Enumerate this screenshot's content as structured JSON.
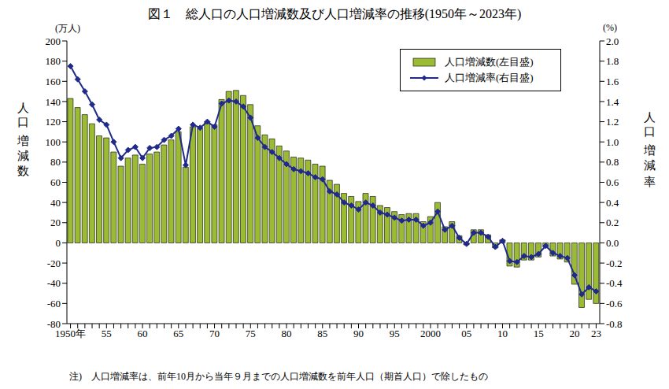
{
  "chart_data": {
    "type": "bar",
    "title": "図１　総人口の人口増減数及び人口増減率の推移(1950年～2023年)",
    "ylabel": "人口増減数",
    "ylabel_unit": "(万人)",
    "y2label": "人口増減率",
    "y2label_unit": "(%)",
    "note": "注)　人口増減率は、前年10月から当年９月までの人口増減数を前年人口（期首人口）で除したもの",
    "categories": [
      "1950年",
      null,
      null,
      null,
      null,
      "55",
      null,
      null,
      null,
      null,
      "60",
      null,
      null,
      null,
      null,
      "65",
      null,
      null,
      null,
      null,
      "70",
      null,
      null,
      null,
      null,
      "75",
      null,
      null,
      null,
      null,
      "80",
      null,
      null,
      null,
      null,
      "85",
      null,
      null,
      null,
      null,
      "90",
      null,
      null,
      null,
      null,
      "95",
      null,
      null,
      null,
      null,
      "2000",
      null,
      null,
      null,
      null,
      "05",
      null,
      null,
      null,
      null,
      "10",
      null,
      null,
      null,
      null,
      "15",
      null,
      null,
      null,
      null,
      "20",
      null,
      null,
      "23"
    ],
    "series": [
      {
        "name": "人口増減数(左目盛)",
        "type": "bar",
        "color": "#9bbb34",
        "values": [
          143,
          134,
          127,
          118,
          106,
          104,
          90,
          76,
          84,
          87,
          78,
          88,
          90,
          97,
          102,
          110,
          75,
          115,
          113,
          120,
          117,
          142,
          150,
          151,
          146,
          137,
          116,
          107,
          103,
          96,
          91,
          85,
          84,
          82,
          78,
          76,
          62,
          58,
          49,
          46,
          41,
          49,
          46,
          37,
          35,
          31,
          28,
          29,
          29,
          21,
          26,
          40,
          16,
          21,
          7,
          -2,
          13,
          13,
          8,
          -5,
          3,
          -23,
          -24,
          -17,
          -17,
          -14,
          -4,
          -13,
          -16,
          -19,
          -41,
          -64,
          -56,
          -60
        ]
      },
      {
        "name": "人口増減率(右目盛)",
        "type": "line",
        "axis": "y2",
        "color": "#1f2a8a",
        "marker": "diamond",
        "line_style": "solid",
        "values": [
          1.75,
          1.62,
          1.5,
          1.37,
          1.22,
          1.17,
          1.0,
          0.84,
          0.92,
          0.95,
          0.84,
          0.94,
          0.95,
          1.02,
          1.06,
          1.13,
          0.77,
          1.17,
          1.14,
          1.2,
          1.15,
          1.38,
          1.41,
          1.4,
          1.35,
          1.24,
          1.04,
          0.95,
          0.9,
          0.84,
          0.78,
          0.73,
          0.71,
          0.69,
          0.65,
          0.63,
          0.51,
          0.48,
          0.4,
          0.37,
          0.33,
          0.4,
          0.37,
          0.3,
          0.28,
          0.25,
          0.22,
          0.23,
          0.23,
          0.17,
          0.2,
          0.31,
          0.13,
          0.17,
          0.05,
          -0.01,
          0.1,
          0.1,
          0.06,
          -0.04,
          0.02,
          -0.18,
          -0.19,
          -0.13,
          -0.14,
          -0.11,
          -0.03,
          -0.1,
          -0.13,
          -0.15,
          -0.32,
          -0.51,
          -0.44,
          -0.48
        ]
      }
    ],
    "ylim": [
      -80,
      200
    ],
    "yticks": [
      -80,
      -60,
      -40,
      -20,
      0,
      20,
      40,
      60,
      80,
      100,
      120,
      140,
      160,
      180,
      200
    ],
    "y2lim": [
      -0.8,
      2.0
    ],
    "y2ticks": [
      {
        "value": -0.8,
        "label": "-0.8"
      },
      {
        "value": -0.6,
        "label": "-0.6"
      },
      {
        "value": -0.4,
        "label": "-0.4"
      },
      {
        "value": -0.2,
        "label": "-0.2"
      },
      {
        "value": 0,
        "label": "0.0"
      },
      {
        "value": 0.2,
        "label": "0.2"
      },
      {
        "value": 0.4,
        "label": "0.4"
      },
      {
        "value": 0.6,
        "label": "0.6"
      },
      {
        "value": 0.8,
        "label": "0.8"
      },
      {
        "value": 1,
        "label": "1.0"
      },
      {
        "value": 1.2,
        "label": "1.2"
      },
      {
        "value": 1.4,
        "label": "1.4"
      },
      {
        "value": 1.6,
        "label": "1.6"
      },
      {
        "value": 1.8,
        "label": "1.8"
      },
      {
        "value": 2,
        "label": "2.0"
      }
    ],
    "grid": false,
    "legend": "upper right"
  }
}
